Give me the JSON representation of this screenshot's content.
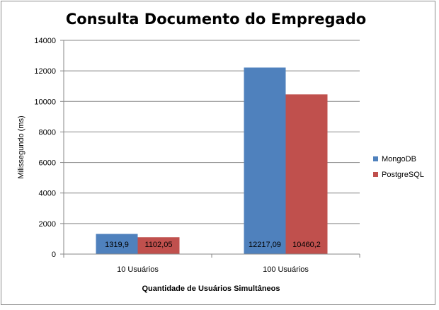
{
  "chart_data": {
    "type": "bar",
    "title": "Consulta Documento do Empregado",
    "xlabel": "Quantidade de Usuários Simultâneos",
    "ylabel": "Milissegundo (ms)",
    "categories": [
      "10 Usuários",
      "100 Usuários"
    ],
    "series": [
      {
        "name": "MongoDB",
        "values": [
          1319.9,
          12217.09
        ],
        "labels": [
          "1319,9",
          "12217,09"
        ],
        "color": "#4f81bd"
      },
      {
        "name": "PostgreSQL",
        "values": [
          1102.05,
          10460.2
        ],
        "labels": [
          "1102,05",
          "10460,2"
        ],
        "color": "#c0504d"
      }
    ],
    "ylim": [
      0,
      14000
    ],
    "yticks": [
      0,
      2000,
      4000,
      6000,
      8000,
      10000,
      12000,
      14000
    ],
    "grid": true,
    "legend": "right"
  }
}
